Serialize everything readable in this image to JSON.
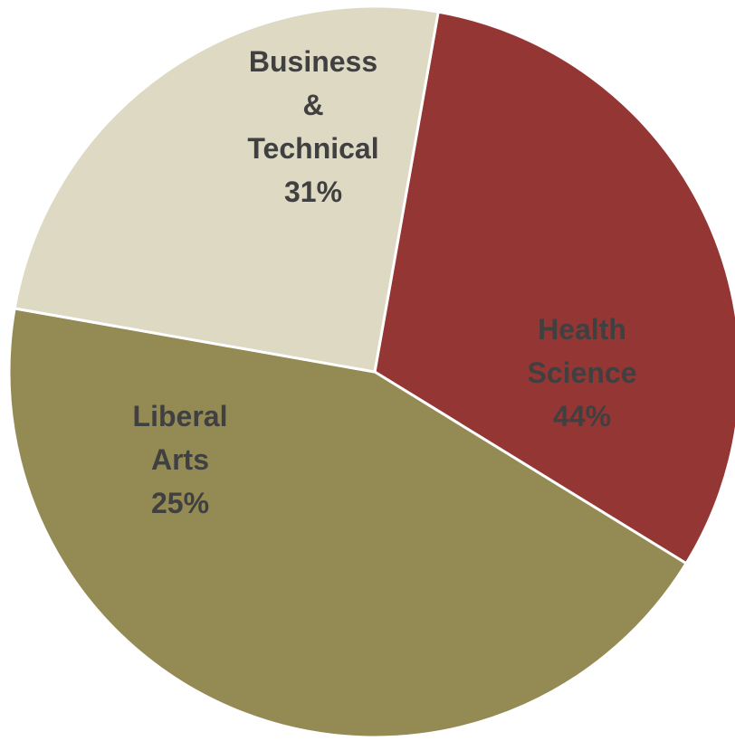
{
  "chart_data": {
    "type": "pie",
    "start_angle_deg": -80,
    "direction": "clockwise",
    "slices": [
      {
        "label": [
          "Business",
          "&",
          "Technical"
        ],
        "percent_label": "31%",
        "value": 31,
        "color": "#943634"
      },
      {
        "label": [
          "Health",
          "Science"
        ],
        "percent_label": "44%",
        "value": 44,
        "color": "#948A54"
      },
      {
        "label": [
          "Liberal",
          "Arts"
        ],
        "percent_label": "25%",
        "value": 25,
        "color": "#DDD9C3"
      }
    ],
    "label_color": "#404040"
  }
}
